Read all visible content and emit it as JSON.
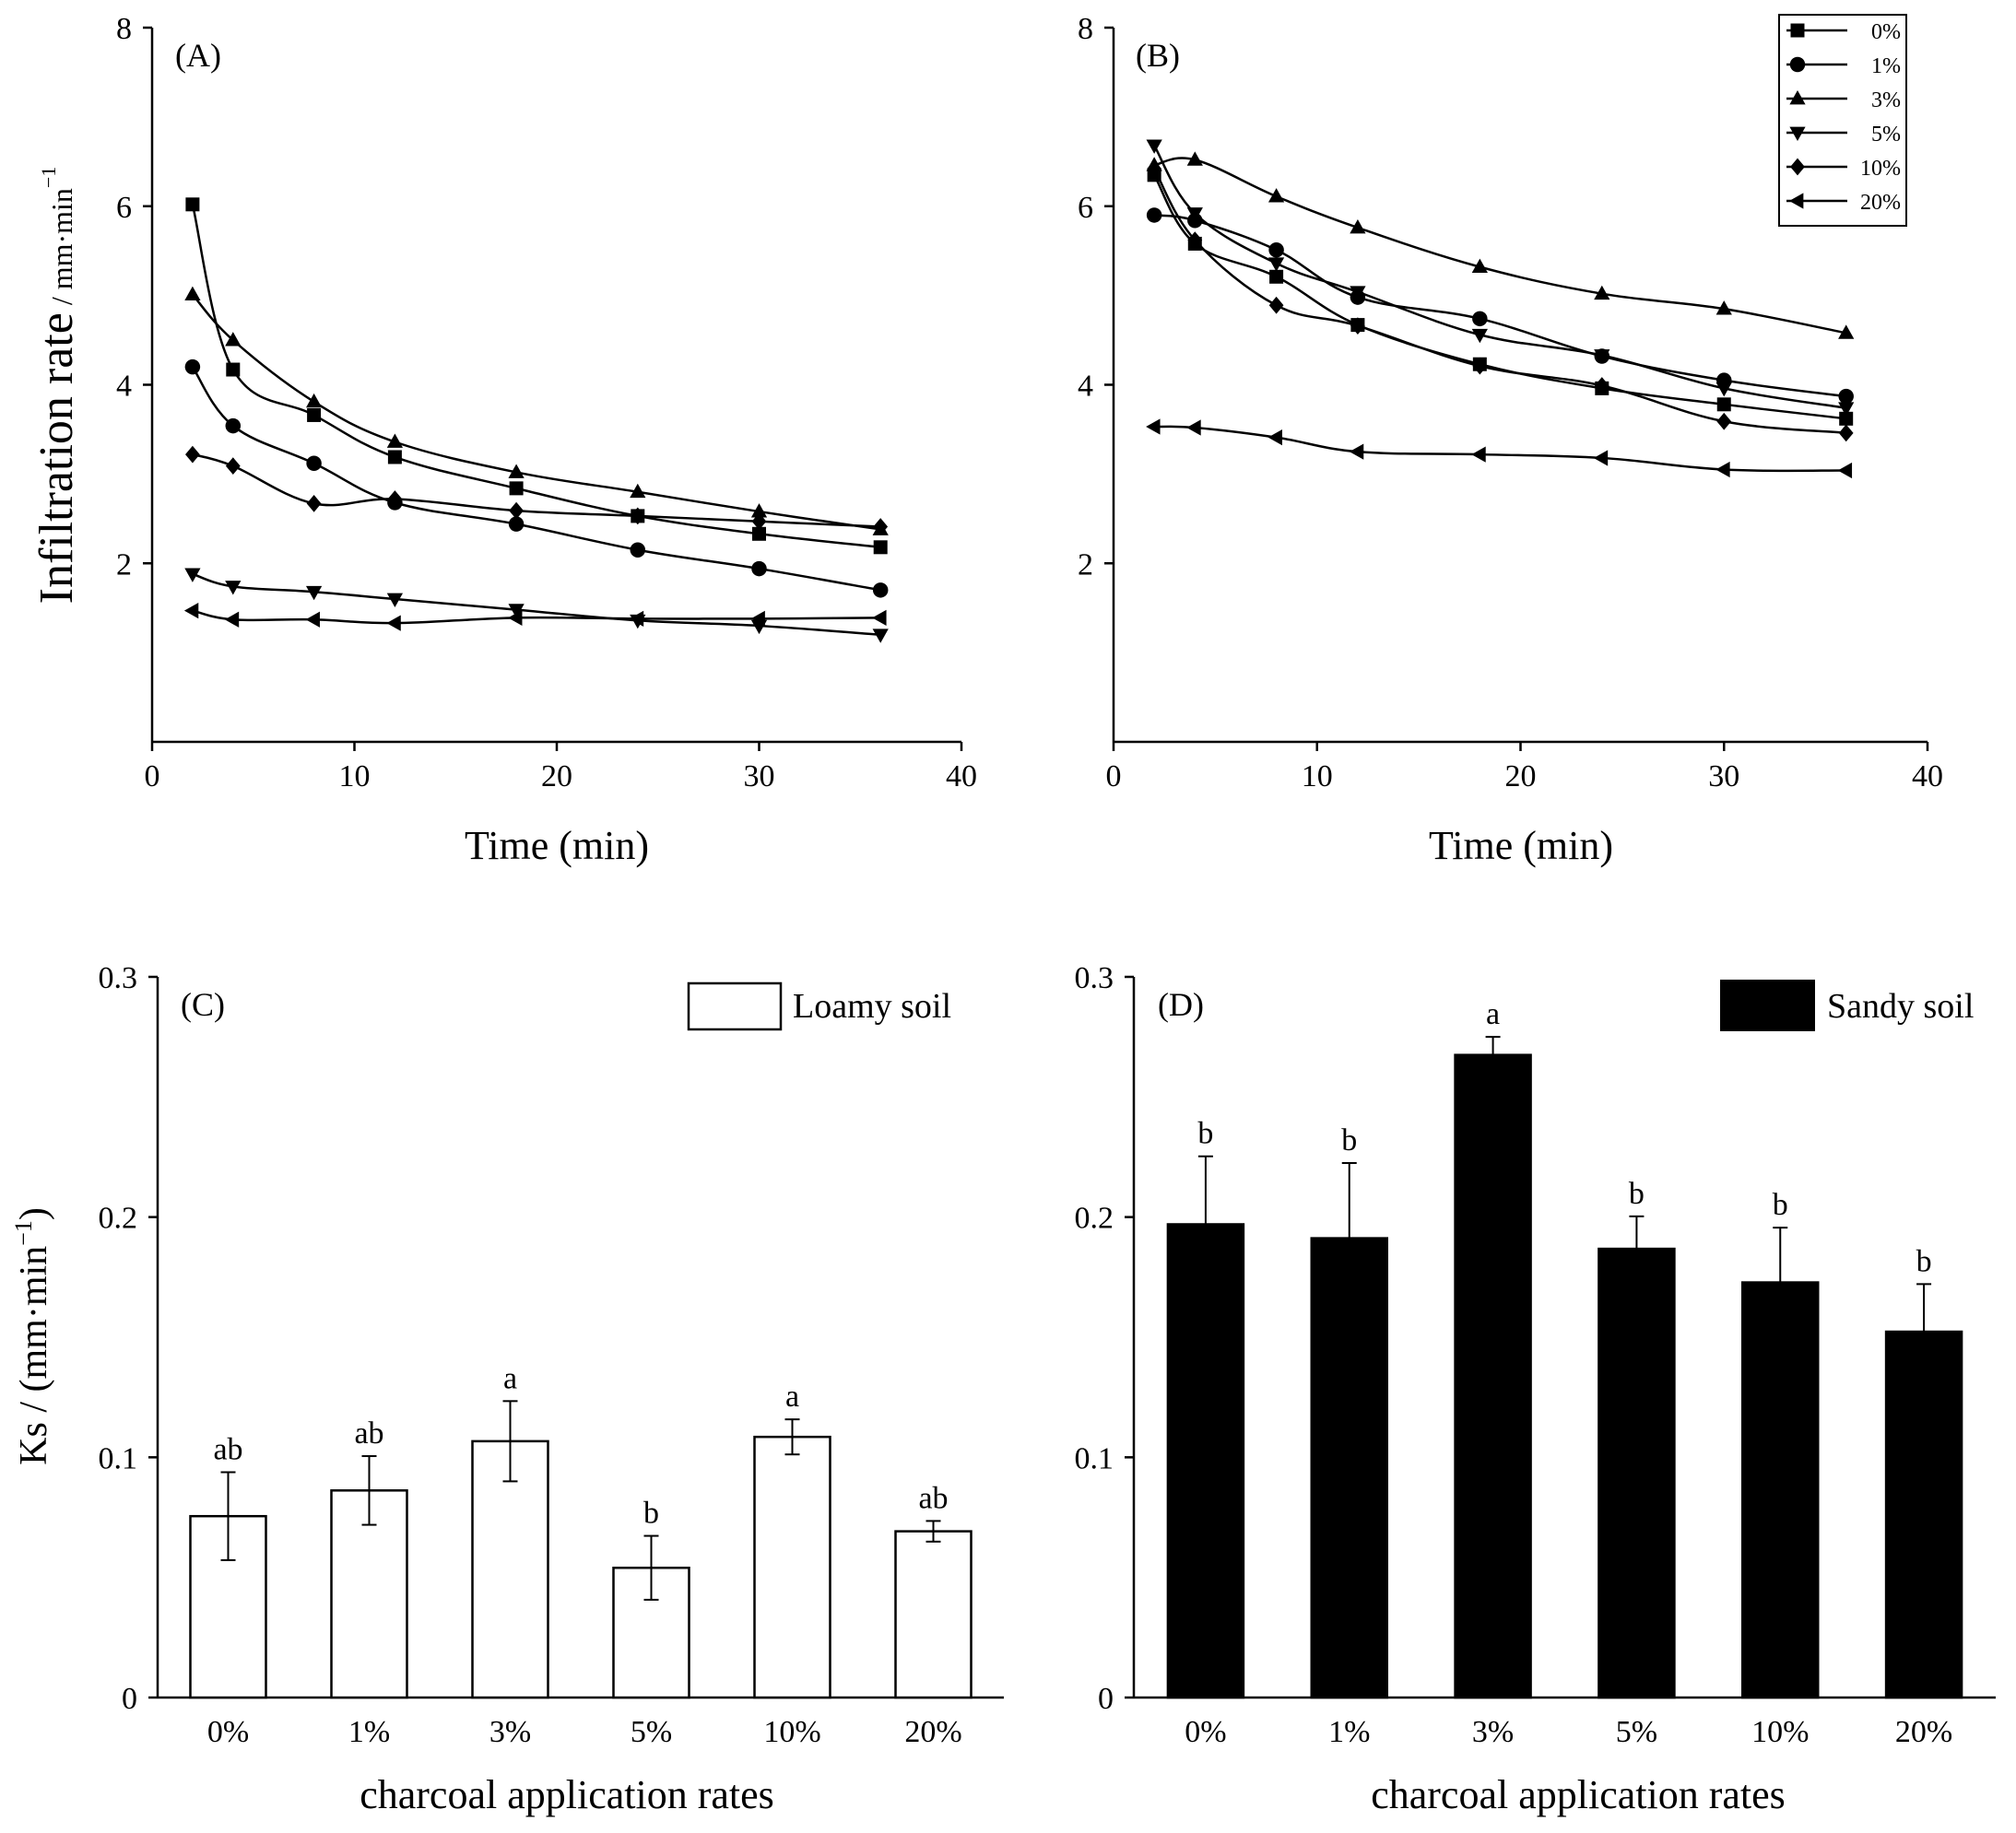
{
  "chart_data": [
    {
      "type": "line",
      "panel_label": "(A)",
      "xlabel": "Time (min)",
      "ylabel_main": "Infiltration rate",
      "ylabel_units": " / mm·min",
      "ylabel_exp": "−1",
      "xlim": [
        0,
        40
      ],
      "ylim": [
        0,
        8
      ],
      "xticks": [
        0,
        10,
        20,
        30,
        40
      ],
      "yticks": [
        2,
        4,
        6,
        8
      ],
      "x": [
        2,
        4,
        8,
        12,
        18,
        24,
        30,
        36
      ],
      "series": [
        {
          "name": "0%",
          "marker": "square",
          "values": [
            6.02,
            4.17,
            3.66,
            3.19,
            2.84,
            2.53,
            2.33,
            2.18
          ]
        },
        {
          "name": "1%",
          "marker": "circle",
          "values": [
            4.2,
            3.54,
            3.12,
            2.68,
            2.44,
            2.15,
            1.94,
            1.7
          ]
        },
        {
          "name": "3%",
          "marker": "triangle-up",
          "values": [
            5.01,
            4.5,
            3.81,
            3.36,
            3.02,
            2.8,
            2.58,
            2.38
          ]
        },
        {
          "name": "5%",
          "marker": "triangle-down",
          "values": [
            1.88,
            1.74,
            1.68,
            1.6,
            1.48,
            1.36,
            1.3,
            1.2
          ]
        },
        {
          "name": "10%",
          "marker": "diamond",
          "values": [
            3.22,
            3.09,
            2.67,
            2.72,
            2.59,
            2.53,
            2.47,
            2.41
          ]
        },
        {
          "name": "20%",
          "marker": "triangle-left",
          "values": [
            1.47,
            1.37,
            1.37,
            1.33,
            1.39,
            1.38,
            1.38,
            1.39
          ]
        }
      ]
    },
    {
      "type": "line",
      "panel_label": "(B)",
      "xlabel": "Time (min)",
      "xlim": [
        0,
        40
      ],
      "ylim": [
        0,
        8
      ],
      "xticks": [
        0,
        10,
        20,
        30,
        40
      ],
      "yticks": [
        2,
        4,
        6,
        8
      ],
      "x": [
        2,
        4,
        8,
        12,
        18,
        24,
        30,
        36
      ],
      "legend": "top-right",
      "series": [
        {
          "name": "0%",
          "marker": "square",
          "values": [
            6.35,
            5.58,
            5.21,
            4.67,
            4.23,
            3.96,
            3.78,
            3.62
          ]
        },
        {
          "name": "1%",
          "marker": "circle",
          "values": [
            5.9,
            5.84,
            5.51,
            4.98,
            4.74,
            4.32,
            4.05,
            3.87
          ]
        },
        {
          "name": "3%",
          "marker": "triangle-up",
          "values": [
            6.46,
            6.52,
            6.11,
            5.76,
            5.32,
            5.02,
            4.85,
            4.58
          ]
        },
        {
          "name": "5%",
          "marker": "triangle-down",
          "values": [
            6.68,
            5.92,
            5.36,
            5.04,
            4.56,
            4.33,
            3.96,
            3.74
          ]
        },
        {
          "name": "10%",
          "marker": "diamond",
          "values": [
            6.42,
            5.62,
            4.89,
            4.66,
            4.21,
            3.99,
            3.59,
            3.46
          ]
        },
        {
          "name": "20%",
          "marker": "triangle-left",
          "values": [
            3.53,
            3.52,
            3.41,
            3.25,
            3.22,
            3.18,
            3.05,
            3.04
          ]
        }
      ]
    },
    {
      "type": "bar",
      "panel_label": "(C)",
      "legend": "Loamy soil",
      "bar_color": "#ffffff",
      "ylabel_main": "Ks / (mm·min",
      "ylabel_exp": "−1",
      "ylabel_close": ")",
      "xlabel": "charcoal application rates",
      "ylim": [
        0,
        0.3
      ],
      "yticks": [
        "0",
        "0.1",
        "0.2",
        "0.3"
      ],
      "categories": [
        "0%",
        "1%",
        "3%",
        "5%",
        "10%",
        "20%"
      ],
      "values": [
        0.0755,
        0.0862,
        0.1067,
        0.054,
        0.1085,
        0.0692
      ],
      "errors": [
        0.0183,
        0.0143,
        0.0167,
        0.0133,
        0.0073,
        0.0043
      ],
      "significance": [
        "ab",
        "ab",
        "a",
        "b",
        "a",
        "ab"
      ]
    },
    {
      "type": "bar",
      "panel_label": "(D)",
      "legend": "Sandy soil",
      "bar_color": "#000000",
      "xlabel": "charcoal application rates",
      "ylim": [
        0,
        0.3
      ],
      "yticks": [
        "0",
        "0.1",
        "0.2",
        "0.3"
      ],
      "categories": [
        "0%",
        "1%",
        "3%",
        "5%",
        "10%",
        "20%"
      ],
      "values": [
        0.197,
        0.1912,
        0.2675,
        0.1868,
        0.1728,
        0.1523
      ],
      "errors": [
        0.0283,
        0.0313,
        0.0075,
        0.0135,
        0.0228,
        0.0198
      ],
      "significance": [
        "b",
        "b",
        "a",
        "b",
        "b",
        "b"
      ]
    }
  ]
}
